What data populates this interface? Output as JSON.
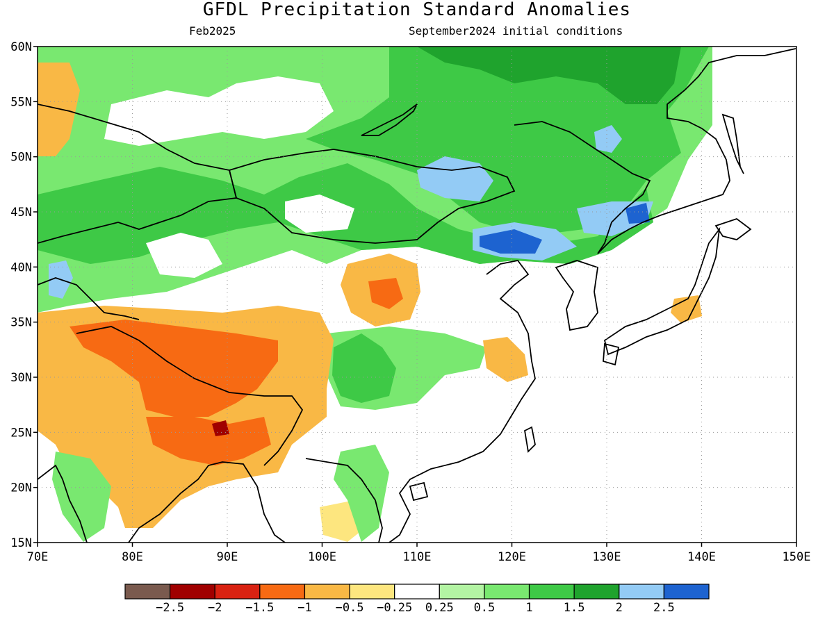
{
  "map": {
    "title": "GFDL Precipitation Standard Anomalies",
    "subtitle_left": "Feb2025",
    "subtitle_right": "September2024 initial conditions",
    "lon_labels": [
      "70E",
      "80E",
      "90E",
      "100E",
      "110E",
      "120E",
      "130E",
      "140E",
      "150E"
    ],
    "lat_labels": [
      "60N",
      "55N",
      "50N",
      "45N",
      "40N",
      "35N",
      "30N",
      "25N",
      "20N",
      "15N"
    ],
    "lon_range": [
      70,
      150
    ],
    "lat_range": [
      15,
      60
    ],
    "grid": "dotted",
    "colorbar": {
      "colors": [
        "#7a5a4e",
        "#a00000",
        "#d92212",
        "#f76a13",
        "#f9b845",
        "#fde67f",
        "#ffffff",
        "#b3f4a3",
        "#79e870",
        "#3ec946",
        "#1fa32d",
        "#93cbf5",
        "#1d63d0"
      ],
      "labels": [
        "-2.5",
        "-2",
        "-1.5",
        "-1",
        "-0.5",
        "-0.25",
        "0.25",
        "0.5",
        "1",
        "1.5",
        "2",
        "2.5"
      ]
    }
  }
}
